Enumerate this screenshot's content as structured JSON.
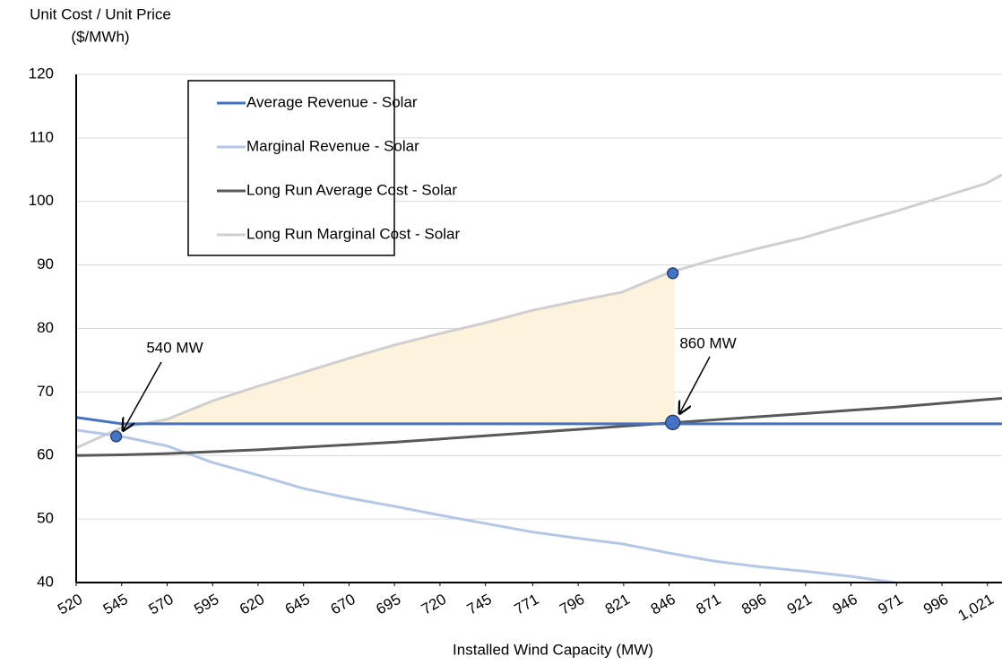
{
  "chart_data": {
    "type": "line",
    "ylabel": [
      "Unit Cost / Unit Price",
      "($/MWh)"
    ],
    "xlabel": "Installed Wind Capacity (MW)",
    "x": [
      520,
      545,
      570,
      595,
      620,
      645,
      670,
      695,
      720,
      745,
      770,
      795,
      820,
      845,
      870,
      895,
      920,
      945,
      970,
      995,
      1020,
      1029
    ],
    "series": [
      {
        "name": "Average Revenue - Solar",
        "color": "#4472c4",
        "values": [
          66,
          65,
          65,
          65,
          65,
          65,
          65,
          65,
          65,
          65,
          65,
          65,
          65,
          65,
          65,
          65,
          65,
          65,
          65,
          65,
          65,
          65
        ]
      },
      {
        "name": "Marginal Revenue - Solar",
        "color": "#b4c7e7",
        "values": [
          64,
          63,
          61.5,
          58.9,
          56.9,
          54.8,
          53.3,
          52.0,
          50.6,
          49.3,
          48.0,
          47.0,
          46.1,
          44.7,
          43.4,
          42.5,
          41.8,
          41.0,
          40.0,
          39.2,
          38.4,
          38.1
        ]
      },
      {
        "name": "Long Run Average Cost - Solar",
        "color": "#595959",
        "values": [
          60.0,
          60.1,
          60.3,
          60.6,
          60.9,
          61.3,
          61.7,
          62.1,
          62.6,
          63.1,
          63.6,
          64.1,
          64.6,
          65.1,
          65.6,
          66.1,
          66.6,
          67.1,
          67.6,
          68.2,
          68.8,
          69.0
        ]
      },
      {
        "name": "Long Run Marginal Cost - Solar",
        "color": "#d0cece",
        "values": [
          61.2,
          64.4,
          65.7,
          68.6,
          70.9,
          73.1,
          75.3,
          77.4,
          79.2,
          80.9,
          82.8,
          84.3,
          85.7,
          88.7,
          90.8,
          92.6,
          94.3,
          96.4,
          98.4,
          100.6,
          102.8,
          104.2
        ]
      }
    ],
    "points": {
      "x": [
        542,
        848,
        848
      ],
      "y": [
        63.0,
        88.7,
        65.2
      ],
      "color": "#4472c4"
    },
    "highlight": {
      "xlim": [
        560,
        849
      ],
      "color": "#fdf3dc"
    },
    "annotations": [
      {
        "text": "540 MW"
      },
      {
        "text": "860 MW"
      }
    ],
    "xlim": [
      520,
      1029
    ],
    "ylim": [
      40,
      120
    ],
    "xticks": [
      520,
      545,
      570,
      595,
      620,
      645,
      670,
      695,
      720,
      745,
      771,
      796,
      821,
      846,
      871,
      896,
      921,
      946,
      971,
      996,
      {
        "value": 1021,
        "label": "1,021"
      }
    ],
    "yticks": [
      40,
      50,
      60,
      70,
      80,
      90,
      100,
      110,
      120
    ],
    "grid": true
  }
}
